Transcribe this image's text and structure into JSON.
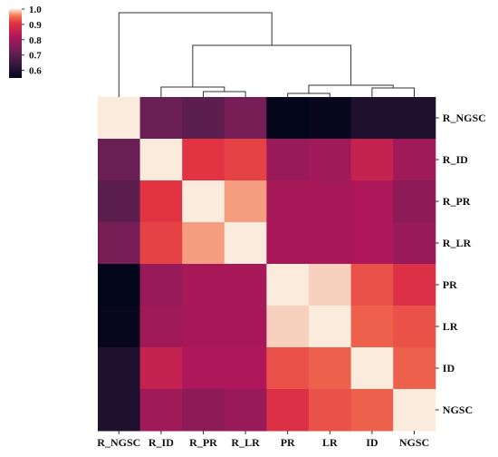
{
  "chart_data": {
    "type": "heatmap",
    "title": "",
    "rows": [
      "R_NGSC",
      "R_ID",
      "R_PR",
      "R_LR",
      "PR",
      "LR",
      "ID",
      "NGSC"
    ],
    "columns": [
      "R_NGSC",
      "R_ID",
      "R_PR",
      "R_LR",
      "PR",
      "LR",
      "ID",
      "NGSC"
    ],
    "values": [
      [
        1.0,
        0.72,
        0.7,
        0.74,
        0.55,
        0.56,
        0.6,
        0.6
      ],
      [
        0.72,
        1.0,
        0.91,
        0.92,
        0.79,
        0.8,
        0.86,
        0.8
      ],
      [
        0.7,
        0.91,
        1.0,
        0.97,
        0.81,
        0.81,
        0.82,
        0.77
      ],
      [
        0.74,
        0.92,
        0.97,
        1.0,
        0.81,
        0.81,
        0.82,
        0.79
      ],
      [
        0.55,
        0.79,
        0.81,
        0.81,
        1.0,
        0.99,
        0.93,
        0.9
      ],
      [
        0.56,
        0.8,
        0.81,
        0.81,
        0.99,
        1.0,
        0.94,
        0.93
      ],
      [
        0.6,
        0.86,
        0.82,
        0.82,
        0.93,
        0.94,
        1.0,
        0.94
      ],
      [
        0.6,
        0.8,
        0.77,
        0.79,
        0.9,
        0.93,
        0.94,
        1.0
      ]
    ],
    "colorbar": {
      "range": [
        0.55,
        1.0
      ],
      "ticks": [
        "0.6",
        "0.7",
        "0.8",
        "0.9",
        "1.0"
      ],
      "tick_values": [
        0.6,
        0.7,
        0.8,
        0.9,
        1.0
      ]
    },
    "colormap": "rocket",
    "dendrogram": "column clustering (top)",
    "grid": false
  }
}
